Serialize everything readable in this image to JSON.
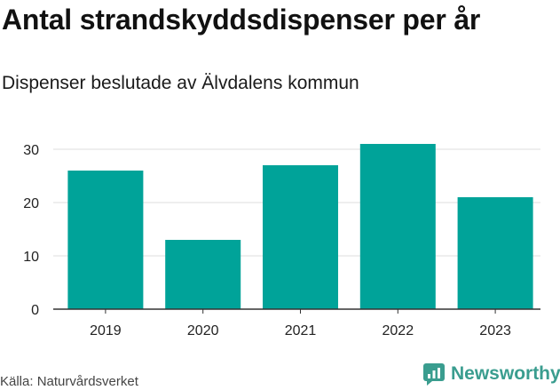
{
  "title": "Antal strandskyddsdispenser per år",
  "subtitle": "Dispenser beslutade av Älvdalens kommun",
  "source": "Källa: Naturvårdsverket",
  "brand": {
    "name": "Newsworthy",
    "icon": "newsworthy-logo-icon",
    "color": "#3a9d8f"
  },
  "colors": {
    "bar": "#00a399",
    "grid": "#dddddd",
    "axis": "#333333"
  },
  "chart_data": {
    "type": "bar",
    "title": "Antal strandskyddsdispenser per år",
    "subtitle": "Dispenser beslutade av Älvdalens kommun",
    "xlabel": "",
    "ylabel": "",
    "categories": [
      "2019",
      "2020",
      "2021",
      "2022",
      "2023"
    ],
    "values": [
      26,
      13,
      27,
      31,
      21
    ],
    "ylim": [
      0,
      32
    ],
    "yticks": [
      0,
      10,
      20,
      30
    ],
    "grid": true
  }
}
